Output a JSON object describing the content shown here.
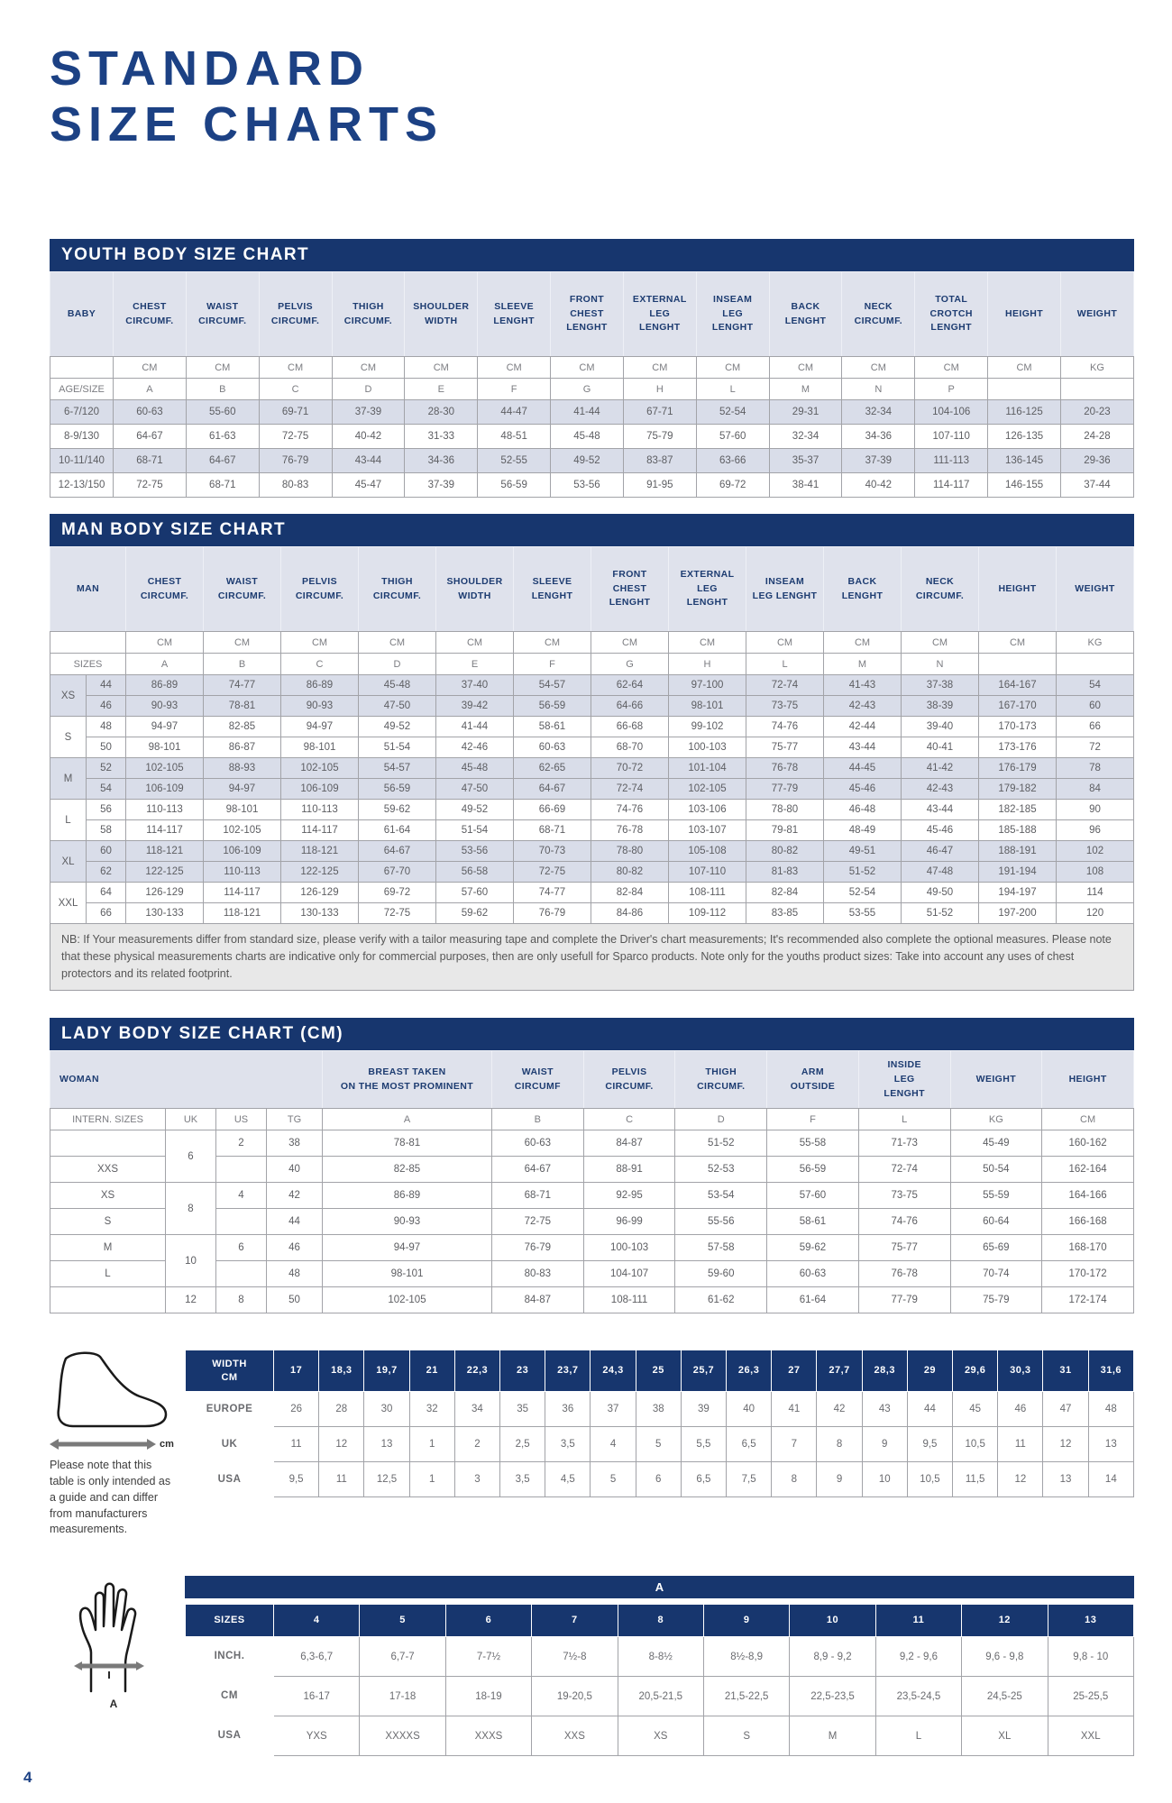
{
  "page": {
    "title_line1": "STANDARD",
    "title_line2": "SIZE CHARTS",
    "number": "4"
  },
  "colors": {
    "navy_bar": "#17366e",
    "title_blue": "#1c4184",
    "row_alt": "#d9dde9",
    "header_bg": "#dfe2ec",
    "data_text": "#5d5e62"
  },
  "youth_chart": {
    "title": "YOUTH BODY SIZE CHART",
    "first_col": "BABY",
    "headers": [
      "CHEST\nCIRCUMF.",
      "WAIST\nCIRCUMF.",
      "PELVIS\nCIRCUMF.",
      "THIGH\nCIRCUMF.",
      "SHOULDER\nWIDTH",
      "SLEEVE\nLENGHT",
      "FRONT\nCHEST\nLENGHT",
      "EXTERNAL\nLEG\nLENGHT",
      "INSEAM\nLEG\nLENGHT",
      "BACK\nLENGHT",
      "NECK\nCIRCUMF.",
      "TOTAL\nCROTCH\nLENGHT",
      "HEIGHT",
      "WEIGHT"
    ],
    "units": [
      "CM",
      "CM",
      "CM",
      "CM",
      "CM",
      "CM",
      "CM",
      "CM",
      "CM",
      "CM",
      "CM",
      "CM",
      "CM",
      "KG"
    ],
    "letters_label": "AGE/SIZE",
    "letters": [
      "A",
      "B",
      "C",
      "D",
      "E",
      "F",
      "G",
      "H",
      "L",
      "M",
      "N",
      "P",
      "",
      ""
    ],
    "rows": [
      {
        "label": "6-7/120",
        "values": [
          "60-63",
          "55-60",
          "69-71",
          "37-39",
          "28-30",
          "44-47",
          "41-44",
          "67-71",
          "52-54",
          "29-31",
          "32-34",
          "104-106",
          "116-125",
          "20-23"
        ]
      },
      {
        "label": "8-9/130",
        "values": [
          "64-67",
          "61-63",
          "72-75",
          "40-42",
          "31-33",
          "48-51",
          "45-48",
          "75-79",
          "57-60",
          "32-34",
          "34-36",
          "107-110",
          "126-135",
          "24-28"
        ]
      },
      {
        "label": "10-11/140",
        "values": [
          "68-71",
          "64-67",
          "76-79",
          "43-44",
          "34-36",
          "52-55",
          "49-52",
          "83-87",
          "63-66",
          "35-37",
          "37-39",
          "111-113",
          "136-145",
          "29-36"
        ]
      },
      {
        "label": "12-13/150",
        "values": [
          "72-75",
          "68-71",
          "80-83",
          "45-47",
          "37-39",
          "56-59",
          "53-56",
          "91-95",
          "69-72",
          "38-41",
          "40-42",
          "114-117",
          "146-155",
          "37-44"
        ]
      }
    ]
  },
  "man_chart": {
    "title": "MAN BODY SIZE CHART",
    "first_col": "MAN",
    "headers": [
      "CHEST\nCIRCUMF.",
      "WAIST\nCIRCUMF.",
      "PELVIS\nCIRCUMF.",
      "THIGH\nCIRCUMF.",
      "SHOULDER\nWIDTH",
      "SLEEVE\nLENGHT",
      "FRONT\nCHEST\nLENGHT",
      "EXTERNAL\nLEG\nLENGHT",
      "INSEAM\nLEG LENGHT",
      "BACK\nLENGHT",
      "NECK\nCIRCUMF.",
      "HEIGHT",
      "WEIGHT"
    ],
    "units": [
      "CM",
      "CM",
      "CM",
      "CM",
      "CM",
      "CM",
      "CM",
      "CM",
      "CM",
      "CM",
      "CM",
      "CM",
      "KG"
    ],
    "sizes_label": "SIZES",
    "letters": [
      "A",
      "B",
      "C",
      "D",
      "E",
      "F",
      "G",
      "H",
      "L",
      "M",
      "N",
      "",
      ""
    ],
    "groups": [
      {
        "name": "XS",
        "rows": [
          {
            "size": "44",
            "values": [
              "86-89",
              "74-77",
              "86-89",
              "45-48",
              "37-40",
              "54-57",
              "62-64",
              "97-100",
              "72-74",
              "41-43",
              "37-38",
              "164-167",
              "54"
            ]
          },
          {
            "size": "46",
            "values": [
              "90-93",
              "78-81",
              "90-93",
              "47-50",
              "39-42",
              "56-59",
              "64-66",
              "98-101",
              "73-75",
              "42-43",
              "38-39",
              "167-170",
              "60"
            ]
          }
        ]
      },
      {
        "name": "S",
        "rows": [
          {
            "size": "48",
            "values": [
              "94-97",
              "82-85",
              "94-97",
              "49-52",
              "41-44",
              "58-61",
              "66-68",
              "99-102",
              "74-76",
              "42-44",
              "39-40",
              "170-173",
              "66"
            ]
          },
          {
            "size": "50",
            "values": [
              "98-101",
              "86-87",
              "98-101",
              "51-54",
              "42-46",
              "60-63",
              "68-70",
              "100-103",
              "75-77",
              "43-44",
              "40-41",
              "173-176",
              "72"
            ]
          }
        ]
      },
      {
        "name": "M",
        "rows": [
          {
            "size": "52",
            "values": [
              "102-105",
              "88-93",
              "102-105",
              "54-57",
              "45-48",
              "62-65",
              "70-72",
              "101-104",
              "76-78",
              "44-45",
              "41-42",
              "176-179",
              "78"
            ]
          },
          {
            "size": "54",
            "values": [
              "106-109",
              "94-97",
              "106-109",
              "56-59",
              "47-50",
              "64-67",
              "72-74",
              "102-105",
              "77-79",
              "45-46",
              "42-43",
              "179-182",
              "84"
            ]
          }
        ]
      },
      {
        "name": "L",
        "rows": [
          {
            "size": "56",
            "values": [
              "110-113",
              "98-101",
              "110-113",
              "59-62",
              "49-52",
              "66-69",
              "74-76",
              "103-106",
              "78-80",
              "46-48",
              "43-44",
              "182-185",
              "90"
            ]
          },
          {
            "size": "58",
            "values": [
              "114-117",
              "102-105",
              "114-117",
              "61-64",
              "51-54",
              "68-71",
              "76-78",
              "103-107",
              "79-81",
              "48-49",
              "45-46",
              "185-188",
              "96"
            ]
          }
        ]
      },
      {
        "name": "XL",
        "rows": [
          {
            "size": "60",
            "values": [
              "118-121",
              "106-109",
              "118-121",
              "64-67",
              "53-56",
              "70-73",
              "78-80",
              "105-108",
              "80-82",
              "49-51",
              "46-47",
              "188-191",
              "102"
            ]
          },
          {
            "size": "62",
            "values": [
              "122-125",
              "110-113",
              "122-125",
              "67-70",
              "56-58",
              "72-75",
              "80-82",
              "107-110",
              "81-83",
              "51-52",
              "47-48",
              "191-194",
              "108"
            ]
          }
        ]
      },
      {
        "name": "XXL",
        "rows": [
          {
            "size": "64",
            "values": [
              "126-129",
              "114-117",
              "126-129",
              "69-72",
              "57-60",
              "74-77",
              "82-84",
              "108-111",
              "82-84",
              "52-54",
              "49-50",
              "194-197",
              "114"
            ]
          },
          {
            "size": "66",
            "values": [
              "130-133",
              "118-121",
              "130-133",
              "72-75",
              "59-62",
              "76-79",
              "84-86",
              "109-112",
              "83-85",
              "53-55",
              "51-52",
              "197-200",
              "120"
            ]
          }
        ]
      }
    ],
    "note": "NB: If Your measurements differ from standard size, please verify with a tailor measuring tape and complete the Driver's chart measurements; It's recommended also complete the optional measures. Please note that these physical measurements charts are indicative only for commercial purposes, then are only usefull for Sparco products. Note only for the youths product sizes: Take into account any uses of chest protectors and its related footprint."
  },
  "lady_chart": {
    "title": "LADY BODY SIZE CHART (CM)",
    "woman_label": "WOMAN",
    "headers": [
      "BREAST TAKEN\nON THE MOST PROMINENT",
      "WAIST\nCIRCUMF",
      "PELVIS\nCIRCUMF.",
      "THIGH\nCIRCUMF.",
      "ARM\nOUTSIDE",
      "INSIDE\nLEG\nLENGHT",
      "WEIGHT",
      "HEIGHT"
    ],
    "subheaders": [
      "INTERN. SIZES",
      "UK",
      "US",
      "TG",
      "A",
      "B",
      "C",
      "D",
      "F",
      "L",
      "KG",
      "CM"
    ],
    "rows": [
      {
        "intern": "",
        "uk": "6",
        "uk_span": 2,
        "us": "2",
        "tg": "38",
        "values": [
          "78-81",
          "60-63",
          "84-87",
          "51-52",
          "55-58",
          "71-73",
          "45-49",
          "160-162"
        ]
      },
      {
        "intern": "XXS",
        "us": "",
        "tg": "40",
        "values": [
          "82-85",
          "64-67",
          "88-91",
          "52-53",
          "56-59",
          "72-74",
          "50-54",
          "162-164"
        ]
      },
      {
        "intern": "XS",
        "uk": "8",
        "uk_span": 2,
        "us": "4",
        "tg": "42",
        "values": [
          "86-89",
          "68-71",
          "92-95",
          "53-54",
          "57-60",
          "73-75",
          "55-59",
          "164-166"
        ]
      },
      {
        "intern": "S",
        "us": "",
        "tg": "44",
        "values": [
          "90-93",
          "72-75",
          "96-99",
          "55-56",
          "58-61",
          "74-76",
          "60-64",
          "166-168"
        ]
      },
      {
        "intern": "M",
        "uk": "10",
        "uk_span": 2,
        "us": "6",
        "tg": "46",
        "values": [
          "94-97",
          "76-79",
          "100-103",
          "57-58",
          "59-62",
          "75-77",
          "65-69",
          "168-170"
        ]
      },
      {
        "intern": "L",
        "us": "",
        "tg": "48",
        "values": [
          "98-101",
          "80-83",
          "104-107",
          "59-60",
          "60-63",
          "76-78",
          "70-74",
          "170-172"
        ]
      },
      {
        "intern": "",
        "uk": "12",
        "uk_span": 1,
        "us": "8",
        "tg": "50",
        "values": [
          "102-105",
          "84-87",
          "108-111",
          "61-62",
          "61-64",
          "77-79",
          "75-79",
          "172-174"
        ]
      }
    ]
  },
  "shoe_chart": {
    "note": "Please note that this table is only intended as a guide and can differ from manufacturers measurements.",
    "unit_label": "cm",
    "rows": [
      {
        "label": "WIDTH\nCM",
        "navy_values": true,
        "values": [
          "17",
          "18,3",
          "19,7",
          "21",
          "22,3",
          "23",
          "23,7",
          "24,3",
          "25",
          "25,7",
          "26,3",
          "27",
          "27,7",
          "28,3",
          "29",
          "29,6",
          "30,3",
          "31",
          "31,6"
        ]
      },
      {
        "label": "EUROPE",
        "navy_values": false,
        "values": [
          "26",
          "28",
          "30",
          "32",
          "34",
          "35",
          "36",
          "37",
          "38",
          "39",
          "40",
          "41",
          "42",
          "43",
          "44",
          "45",
          "46",
          "47",
          "48"
        ]
      },
      {
        "label": "UK",
        "navy_values": false,
        "values": [
          "11",
          "12",
          "13",
          "1",
          "2",
          "2,5",
          "3,5",
          "4",
          "5",
          "5,5",
          "6,5",
          "7",
          "8",
          "9",
          "9,5",
          "10,5",
          "11",
          "12",
          "13"
        ]
      },
      {
        "label": "USA",
        "navy_values": false,
        "values": [
          "9,5",
          "11",
          "12,5",
          "1",
          "3",
          "3,5",
          "4,5",
          "5",
          "6",
          "6,5",
          "7,5",
          "8",
          "9",
          "10",
          "10,5",
          "11,5",
          "12",
          "13",
          "14"
        ]
      }
    ]
  },
  "glove_chart": {
    "header": "A",
    "arrow_label": "A",
    "rows": [
      {
        "label": "SIZES",
        "navy_values": true,
        "values": [
          "4",
          "5",
          "6",
          "7",
          "8",
          "9",
          "10",
          "11",
          "12",
          "13"
        ]
      },
      {
        "label": "INCH.",
        "navy_values": false,
        "values": [
          "6,3-6,7",
          "6,7-7",
          "7-7½",
          "7½-8",
          "8-8½",
          "8½-8,9",
          "8,9 - 9,2",
          "9,2 - 9,6",
          "9,6 - 9,8",
          "9,8 - 10"
        ]
      },
      {
        "label": "CM",
        "navy_values": false,
        "values": [
          "16-17",
          "17-18",
          "18-19",
          "19-20,5",
          "20,5-21,5",
          "21,5-22,5",
          "22,5-23,5",
          "23,5-24,5",
          "24,5-25",
          "25-25,5"
        ]
      },
      {
        "label": "USA",
        "navy_values": false,
        "values": [
          "YXS",
          "XXXXS",
          "XXXS",
          "XXS",
          "XS",
          "S",
          "M",
          "L",
          "XL",
          "XXL"
        ]
      }
    ]
  }
}
